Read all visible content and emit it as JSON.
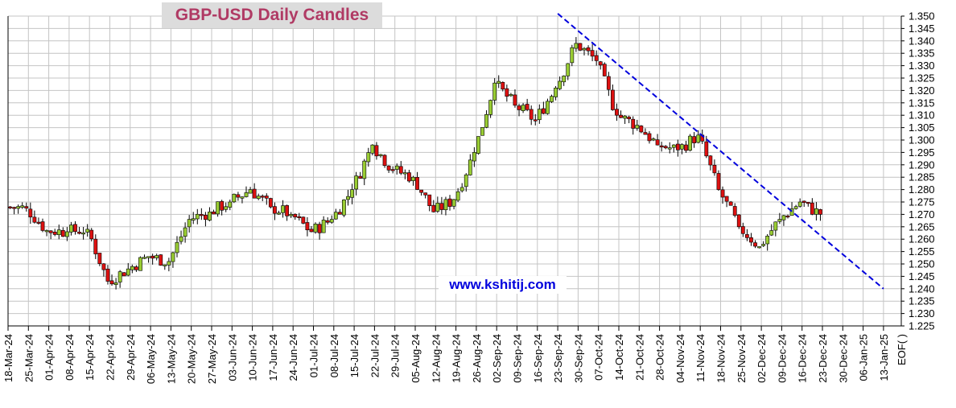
{
  "chart_data": {
    "type": "candlestick",
    "title": "GBP-USD Daily Candles",
    "watermark": "www.kshitij.com",
    "y_axis": {
      "min": 1.225,
      "max": 1.35,
      "step": 0.005,
      "side": "right"
    },
    "x_ticks": [
      "18-Mar-24",
      "25-Mar-24",
      "01-Apr-24",
      "08-Apr-24",
      "15-Apr-24",
      "22-Apr-24",
      "29-Apr-24",
      "06-May-24",
      "13-May-24",
      "20-May-24",
      "27-May-24",
      "03-Jun-24",
      "10-Jun-24",
      "17-Jun-24",
      "24-Jun-24",
      "01-Jul-24",
      "08-Jul-24",
      "15-Jul-24",
      "22-Jul-24",
      "29-Jul-24",
      "05-Aug-24",
      "12-Aug-24",
      "19-Aug-24",
      "26-Aug-24",
      "02-Sep-24",
      "09-Sep-24",
      "16-Sep-24",
      "23-Sep-24",
      "30-Sep-24",
      "07-Oct-24",
      "14-Oct-24",
      "21-Oct-24",
      "28-Oct-24",
      "04-Nov-24",
      "11-Nov-24",
      "18-Nov-24",
      "25-Nov-24",
      "02-Dec-24",
      "09-Dec-24",
      "16-Dec-24",
      "23-Dec-24",
      "30-Dec-24",
      "06-Jan-25",
      "13-Jan-25",
      "EOF( )"
    ],
    "grid": true,
    "trendline": {
      "from": {
        "date": "23-Sep-24",
        "price": 1.351
      },
      "to": {
        "date": "13-Jan-25",
        "price": 1.24
      },
      "style": "dashed",
      "color": "#0000dd"
    },
    "colors": {
      "up": "#99cc33",
      "down": "#dd1111",
      "outline": "#000000"
    },
    "weekly_closes": [
      1.2725,
      1.2635,
      1.263,
      1.264,
      1.243,
      1.248,
      1.253,
      1.251,
      1.268,
      1.271,
      1.275,
      1.28,
      1.273,
      1.27,
      1.263,
      1.268,
      1.28,
      1.298,
      1.288,
      1.285,
      1.271,
      1.276,
      1.295,
      1.323,
      1.314,
      1.308,
      1.321,
      1.339,
      1.332,
      1.31,
      1.306,
      1.298,
      1.296,
      1.302,
      1.28,
      1.265,
      1.257,
      1.268,
      1.275,
      1.27
    ]
  }
}
